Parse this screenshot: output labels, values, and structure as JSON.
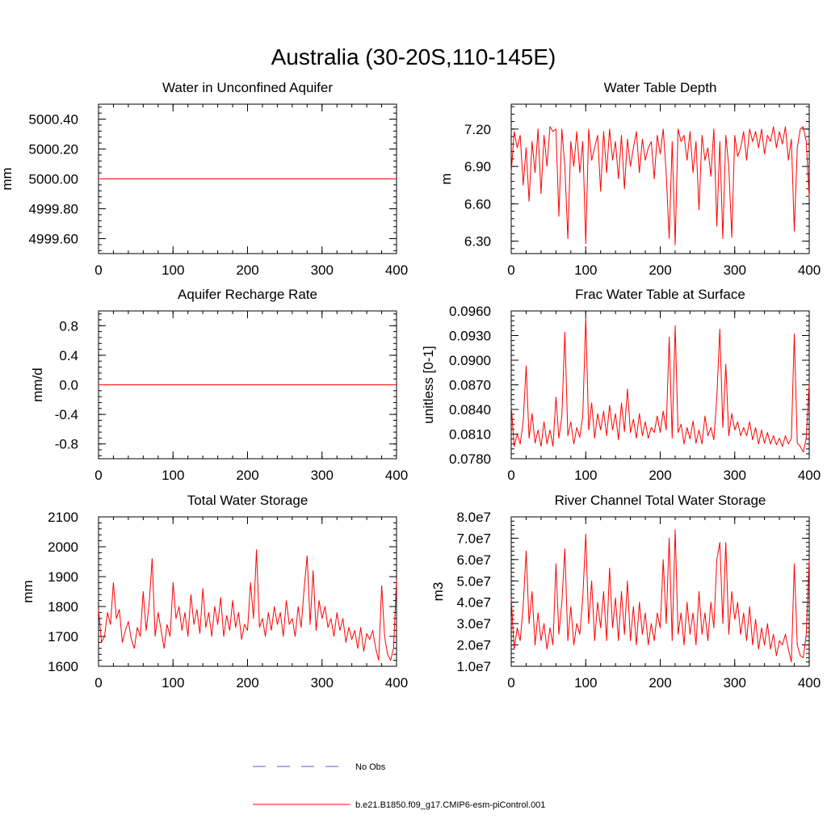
{
  "page_title": "Australia (30-20S,110-145E)",
  "legend": {
    "placement": "bottom-center",
    "items": [
      {
        "label": "No Obs",
        "style": "dashed",
        "color": "#5b5bd6"
      },
      {
        "label": "b.e21.B1850.f09_g17.CMIP6-esm-piControl.001",
        "style": "solid",
        "color": "#ff0000"
      }
    ]
  },
  "colors": {
    "series": "#ff0000",
    "obs": "#5b5bd6",
    "axis": "#000000"
  },
  "chart_data": [
    {
      "id": "aquifer",
      "type": "line",
      "title": "Water in Unconfined Aquifer",
      "ylabel": "mm",
      "xlim": [
        0,
        400
      ],
      "ylim": [
        4999.5,
        5000.5
      ],
      "xticks": [
        0,
        100,
        200,
        300,
        400
      ],
      "xtick_labels": [
        "0",
        "100",
        "200",
        "300",
        "400"
      ],
      "yticks": [
        4999.6,
        4999.8,
        5000.0,
        5000.2,
        5000.4
      ],
      "ytick_labels": [
        "4999.60",
        "4999.80",
        "5000.00",
        "5000.20",
        "5000.40"
      ],
      "series": [
        {
          "x": [
            0,
            400
          ],
          "values": [
            5000.0,
            5000.0
          ]
        }
      ]
    },
    {
      "id": "wtd",
      "type": "line",
      "title": "Water Table Depth",
      "ylabel": "m",
      "xlim": [
        0,
        400
      ],
      "ylim": [
        6.2,
        7.4
      ],
      "xticks": [
        0,
        100,
        200,
        300,
        400
      ],
      "xtick_labels": [
        "0",
        "100",
        "200",
        "300",
        "400"
      ],
      "yticks": [
        6.3,
        6.6,
        6.9,
        7.2
      ],
      "ytick_labels": [
        "6.30",
        "6.60",
        "6.90",
        "7.20"
      ],
      "series": [
        {
          "x": [
            0,
            4,
            8,
            12,
            16,
            20,
            24,
            28,
            32,
            36,
            40,
            44,
            48,
            52,
            56,
            60,
            64,
            68,
            72,
            76,
            80,
            84,
            88,
            92,
            96,
            100,
            104,
            108,
            112,
            116,
            120,
            124,
            128,
            132,
            136,
            140,
            144,
            148,
            152,
            156,
            160,
            164,
            168,
            172,
            176,
            180,
            184,
            188,
            192,
            196,
            200,
            204,
            208,
            212,
            216,
            220,
            224,
            228,
            232,
            236,
            240,
            244,
            248,
            252,
            256,
            260,
            264,
            268,
            272,
            276,
            280,
            284,
            288,
            292,
            296,
            300,
            304,
            308,
            312,
            316,
            320,
            324,
            328,
            332,
            336,
            340,
            344,
            348,
            352,
            356,
            360,
            364,
            368,
            372,
            376,
            380,
            384,
            388,
            392,
            396,
            400
          ],
          "values": [
            6.85,
            7.18,
            7.05,
            7.15,
            6.75,
            7.05,
            6.62,
            7.1,
            6.85,
            7.2,
            6.68,
            7.15,
            6.9,
            7.22,
            7.18,
            7.2,
            6.5,
            7.2,
            6.9,
            6.32,
            7.1,
            6.9,
            7.18,
            6.85,
            7.1,
            6.28,
            7.2,
            6.95,
            7.05,
            7.15,
            6.7,
            7.18,
            6.85,
            7.2,
            6.95,
            7.1,
            6.8,
            7.15,
            6.72,
            7.12,
            6.9,
            7.05,
            7.18,
            6.85,
            7.12,
            6.95,
            7.05,
            7.1,
            6.8,
            7.15,
            7.0,
            7.2,
            6.85,
            6.32,
            7.1,
            6.27,
            7.2,
            7.1,
            7.15,
            6.95,
            7.18,
            6.85,
            7.1,
            6.55,
            7.15,
            6.95,
            7.05,
            6.82,
            7.2,
            6.42,
            7.1,
            6.32,
            7.15,
            6.9,
            6.33,
            7.15,
            6.98,
            7.05,
            7.18,
            6.95,
            7.2,
            7.1,
            7.18,
            7.05,
            7.2,
            7.0,
            7.15,
            7.1,
            7.22,
            7.05,
            7.18,
            7.08,
            7.22,
            6.95,
            7.12,
            6.38,
            7.05,
            7.2,
            7.22,
            7.1,
            6.65
          ]
        }
      ]
    },
    {
      "id": "recharge",
      "type": "line",
      "title": "Aquifer Recharge Rate",
      "ylabel": "mm/d",
      "xlim": [
        0,
        400
      ],
      "ylim": [
        -1.0,
        1.0
      ],
      "xticks": [
        0,
        100,
        200,
        300,
        400
      ],
      "xtick_labels": [
        "0",
        "100",
        "200",
        "300",
        "400"
      ],
      "yticks": [
        -0.8,
        -0.4,
        0.0,
        0.4,
        0.8
      ],
      "ytick_labels": [
        "-0.8",
        "-0.4",
        "0.0",
        "0.4",
        "0.8"
      ],
      "series": [
        {
          "x": [
            0,
            400
          ],
          "values": [
            0.0,
            0.0
          ]
        }
      ]
    },
    {
      "id": "fracwt",
      "type": "line",
      "title": "Frac Water Table at Surface",
      "ylabel": "unitless [0-1]",
      "xlim": [
        0,
        400
      ],
      "ylim": [
        0.078,
        0.096
      ],
      "xticks": [
        0,
        100,
        200,
        300,
        400
      ],
      "xtick_labels": [
        "0",
        "100",
        "200",
        "300",
        "400"
      ],
      "yticks": [
        0.078,
        0.081,
        0.084,
        0.087,
        0.09,
        0.093,
        0.096
      ],
      "ytick_labels": [
        "0.0780",
        "0.0810",
        "0.0840",
        "0.0870",
        "0.0900",
        "0.0930",
        "0.0960"
      ],
      "series": [
        {
          "x": [
            0,
            4,
            8,
            12,
            16,
            20,
            24,
            28,
            32,
            36,
            40,
            44,
            48,
            52,
            56,
            60,
            64,
            68,
            72,
            76,
            80,
            84,
            88,
            92,
            96,
            100,
            104,
            108,
            112,
            116,
            120,
            124,
            128,
            132,
            136,
            140,
            144,
            148,
            152,
            156,
            160,
            164,
            168,
            172,
            176,
            180,
            184,
            188,
            192,
            196,
            200,
            204,
            208,
            212,
            216,
            220,
            224,
            228,
            232,
            236,
            240,
            244,
            248,
            252,
            256,
            260,
            264,
            268,
            272,
            276,
            280,
            284,
            288,
            292,
            296,
            300,
            304,
            308,
            312,
            316,
            320,
            324,
            328,
            332,
            336,
            340,
            344,
            348,
            352,
            356,
            360,
            364,
            368,
            372,
            376,
            380,
            384,
            388,
            392,
            396,
            400
          ],
          "values": [
            0.0845,
            0.0795,
            0.081,
            0.0798,
            0.0825,
            0.0893,
            0.0805,
            0.0835,
            0.0799,
            0.0815,
            0.0795,
            0.0825,
            0.0798,
            0.0815,
            0.0795,
            0.0855,
            0.0805,
            0.0832,
            0.0934,
            0.0808,
            0.0825,
            0.0798,
            0.0818,
            0.0806,
            0.0832,
            0.0952,
            0.0815,
            0.0848,
            0.0805,
            0.0835,
            0.0815,
            0.0838,
            0.0808,
            0.0845,
            0.0815,
            0.0835,
            0.0803,
            0.0848,
            0.0813,
            0.0865,
            0.0812,
            0.0828,
            0.0805,
            0.0835,
            0.0808,
            0.0825,
            0.0805,
            0.0818,
            0.0812,
            0.0832,
            0.0812,
            0.0838,
            0.0815,
            0.0928,
            0.0805,
            0.0942,
            0.0812,
            0.0822,
            0.0798,
            0.0818,
            0.0804,
            0.0826,
            0.0799,
            0.0815,
            0.0798,
            0.0832,
            0.0808,
            0.0818,
            0.0803,
            0.0855,
            0.0938,
            0.0818,
            0.0895,
            0.0808,
            0.0835,
            0.0815,
            0.0825,
            0.0808,
            0.0818,
            0.0808,
            0.0825,
            0.0803,
            0.0818,
            0.0798,
            0.0815,
            0.0799,
            0.0812,
            0.0798,
            0.0808,
            0.0797,
            0.0805,
            0.0795,
            0.0808,
            0.0798,
            0.0805,
            0.0932,
            0.0799,
            0.0795,
            0.0788,
            0.0805,
            0.0872
          ]
        }
      ]
    },
    {
      "id": "tws",
      "type": "line",
      "title": "Total Water Storage",
      "ylabel": "mm",
      "xlim": [
        0,
        400
      ],
      "ylim": [
        1600,
        2100
      ],
      "xticks": [
        0,
        100,
        200,
        300,
        400
      ],
      "xtick_labels": [
        "0",
        "100",
        "200",
        "300",
        "400"
      ],
      "yticks": [
        1600,
        1700,
        1800,
        1900,
        2000,
        2100
      ],
      "ytick_labels": [
        "1600",
        "1700",
        "1800",
        "1900",
        "2000",
        "2100"
      ],
      "series": [
        {
          "x": [
            0,
            4,
            8,
            12,
            16,
            20,
            24,
            28,
            32,
            36,
            40,
            44,
            48,
            52,
            56,
            60,
            64,
            68,
            72,
            76,
            80,
            84,
            88,
            92,
            96,
            100,
            104,
            108,
            112,
            116,
            120,
            124,
            128,
            132,
            136,
            140,
            144,
            148,
            152,
            156,
            160,
            164,
            168,
            172,
            176,
            180,
            184,
            188,
            192,
            196,
            200,
            204,
            208,
            212,
            216,
            220,
            224,
            228,
            232,
            236,
            240,
            244,
            248,
            252,
            256,
            260,
            264,
            268,
            272,
            276,
            280,
            284,
            288,
            292,
            296,
            300,
            304,
            308,
            312,
            316,
            320,
            324,
            328,
            332,
            336,
            340,
            344,
            348,
            352,
            356,
            360,
            364,
            368,
            372,
            376,
            380,
            384,
            388,
            392,
            396,
            400
          ],
          "values": [
            1790,
            1680,
            1700,
            1780,
            1740,
            1880,
            1760,
            1790,
            1680,
            1720,
            1750,
            1690,
            1660,
            1730,
            1700,
            1850,
            1720,
            1810,
            1960,
            1700,
            1780,
            1720,
            1660,
            1740,
            1700,
            1880,
            1760,
            1800,
            1720,
            1780,
            1700,
            1840,
            1740,
            1790,
            1710,
            1860,
            1730,
            1780,
            1700,
            1800,
            1740,
            1830,
            1700,
            1770,
            1720,
            1820,
            1730,
            1780,
            1690,
            1740,
            1720,
            1880,
            1760,
            1990,
            1730,
            1760,
            1700,
            1780,
            1720,
            1800,
            1740,
            1780,
            1700,
            1820,
            1740,
            1760,
            1700,
            1800,
            1730,
            1860,
            1970,
            1740,
            1920,
            1720,
            1820,
            1760,
            1800,
            1730,
            1760,
            1700,
            1780,
            1720,
            1760,
            1680,
            1730,
            1690,
            1720,
            1660,
            1730,
            1650,
            1710,
            1690,
            1720,
            1660,
            1620,
            1870,
            1700,
            1640,
            1620,
            1660,
            1890
          ]
        }
      ]
    },
    {
      "id": "river",
      "type": "line",
      "title": "River Channel Total Water Storage",
      "ylabel": "m3",
      "xlim": [
        0,
        400
      ],
      "ylim": [
        10000000,
        80000000
      ],
      "xticks": [
        0,
        100,
        200,
        300,
        400
      ],
      "xtick_labels": [
        "0",
        "100",
        "200",
        "300",
        "400"
      ],
      "yticks": [
        10000000,
        20000000,
        30000000,
        40000000,
        50000000,
        60000000,
        70000000,
        80000000
      ],
      "ytick_labels": [
        "1.0e7",
        "2.0e7",
        "3.0e7",
        "4.0e7",
        "5.0e7",
        "6.0e7",
        "7.0e7",
        "8.0e7"
      ],
      "series": [
        {
          "x": [
            0,
            4,
            8,
            12,
            16,
            20,
            24,
            28,
            32,
            36,
            40,
            44,
            48,
            52,
            56,
            60,
            64,
            68,
            72,
            76,
            80,
            84,
            88,
            92,
            96,
            100,
            104,
            108,
            112,
            116,
            120,
            124,
            128,
            132,
            136,
            140,
            144,
            148,
            152,
            156,
            160,
            164,
            168,
            172,
            176,
            180,
            184,
            188,
            192,
            196,
            200,
            204,
            208,
            212,
            216,
            220,
            224,
            228,
            232,
            236,
            240,
            244,
            248,
            252,
            256,
            260,
            264,
            268,
            272,
            276,
            280,
            284,
            288,
            292,
            296,
            300,
            304,
            308,
            312,
            316,
            320,
            324,
            328,
            332,
            336,
            340,
            344,
            348,
            352,
            356,
            360,
            364,
            368,
            372,
            376,
            380,
            384,
            388,
            392,
            396,
            400
          ],
          "values": [
            42000000,
            18000000,
            28000000,
            22000000,
            38000000,
            64000000,
            30000000,
            45000000,
            20000000,
            35000000,
            22000000,
            30000000,
            18000000,
            28000000,
            20000000,
            58000000,
            25000000,
            40000000,
            65000000,
            22000000,
            38000000,
            20000000,
            30000000,
            25000000,
            42000000,
            72000000,
            30000000,
            50000000,
            22000000,
            40000000,
            28000000,
            45000000,
            22000000,
            56000000,
            28000000,
            42000000,
            22000000,
            45000000,
            25000000,
            50000000,
            22000000,
            38000000,
            20000000,
            40000000,
            25000000,
            35000000,
            20000000,
            30000000,
            22000000,
            35000000,
            28000000,
            60000000,
            30000000,
            70000000,
            22000000,
            74000000,
            25000000,
            35000000,
            20000000,
            40000000,
            25000000,
            35000000,
            20000000,
            45000000,
            25000000,
            35000000,
            22000000,
            40000000,
            28000000,
            60000000,
            68000000,
            30000000,
            68000000,
            25000000,
            45000000,
            32000000,
            40000000,
            25000000,
            35000000,
            22000000,
            38000000,
            20000000,
            32000000,
            18000000,
            28000000,
            20000000,
            30000000,
            18000000,
            25000000,
            15000000,
            22000000,
            20000000,
            25000000,
            18000000,
            12000000,
            58000000,
            20000000,
            15000000,
            14000000,
            25000000,
            60000000
          ]
        }
      ]
    }
  ]
}
